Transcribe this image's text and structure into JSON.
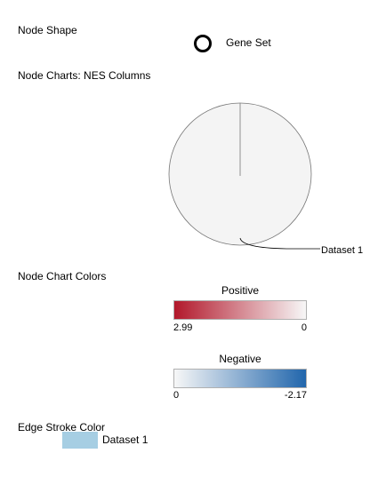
{
  "node_shape": {
    "label": "Node Shape",
    "item_label": "Gene Set"
  },
  "node_charts": {
    "label": "Node Charts: NES Columns",
    "slice_label": "Dataset 1"
  },
  "node_chart_colors": {
    "label": "Node Chart Colors",
    "positive": {
      "title": "Positive",
      "min_label": "2.99",
      "max_label": "0",
      "color_start": "#b2182b",
      "color_end": "#f7f7f7"
    },
    "negative": {
      "title": "Negative",
      "min_label": "0",
      "max_label": "-2.17",
      "color_start": "#f7f7f7",
      "color_end": "#2166ac"
    }
  },
  "edge_stroke_color": {
    "label": "Edge Stroke Color",
    "item_label": "Dataset 1",
    "swatch_color": "#a6cee3"
  },
  "colors": {
    "pie_fill": "#f4f4f4",
    "pie_stroke": "#777777"
  }
}
